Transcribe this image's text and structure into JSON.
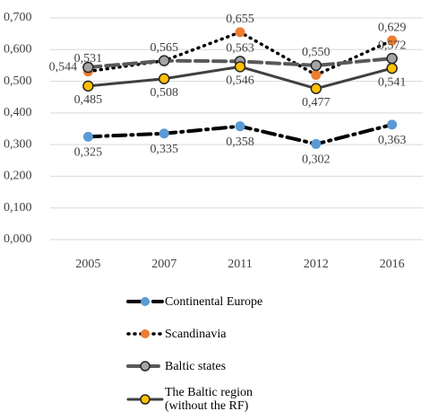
{
  "chart_data": {
    "type": "line",
    "categories": [
      "2005",
      "2007",
      "2011",
      "2012",
      "2016"
    ],
    "series": [
      {
        "name": "Continental Europe",
        "color": "#5b9bd5",
        "line_color": "#000000",
        "dash": "dash-dot",
        "values": [
          0.325,
          0.335,
          0.358,
          0.302,
          0.363
        ],
        "value_labels": [
          "0,325",
          "0,335",
          "0,358",
          "0,302",
          "0,363"
        ]
      },
      {
        "name": "Scandinavia",
        "color": "#ed7d31",
        "line_color": "#000000",
        "dash": "dot",
        "values": [
          0.531,
          0.565,
          0.655,
          0.52,
          0.629
        ],
        "value_labels": [
          "0,531",
          "0,565",
          "0,655",
          null,
          "0,629"
        ]
      },
      {
        "name": "Baltic states",
        "color": "#a5a5a5",
        "line_color": "#595959",
        "dash": "dash",
        "values": [
          0.544,
          0.565,
          0.563,
          0.55,
          0.572
        ],
        "value_labels": [
          "0,544",
          null,
          "0,563",
          "0,550",
          "0,572"
        ]
      },
      {
        "name": "The Baltic region (without the RF)",
        "color": "#ffc000",
        "line_color": "#404040",
        "dash": "solid",
        "values": [
          0.485,
          0.508,
          0.546,
          0.477,
          0.541
        ],
        "value_labels": [
          "0,485",
          "0,508",
          "0,546",
          "0,477",
          "0,541"
        ]
      }
    ],
    "ylim": [
      0,
      0.7
    ],
    "yticks": [
      {
        "value": 0,
        "label": "0,000"
      },
      {
        "value": 0.1,
        "label": "0,100"
      },
      {
        "value": 0.2,
        "label": "0,200"
      },
      {
        "value": 0.3,
        "label": "0,300"
      },
      {
        "value": 0.4,
        "label": "0,400"
      },
      {
        "value": 0.5,
        "label": "0,500"
      },
      {
        "value": 0.6,
        "label": "0,600"
      },
      {
        "value": 0.7,
        "label": "0,700"
      }
    ],
    "grid": true,
    "legend": "bottom"
  }
}
